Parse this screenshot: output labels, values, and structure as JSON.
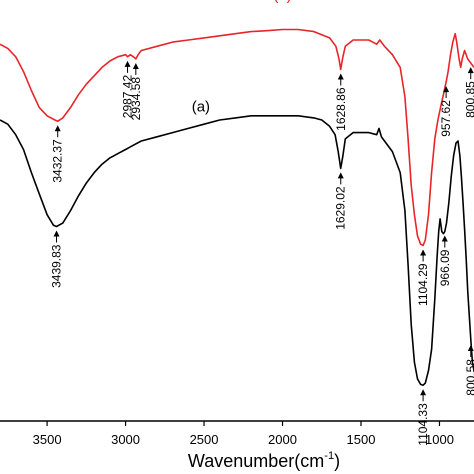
{
  "chart_data": {
    "type": "line",
    "xlabel": "Wavenumber(cm",
    "xlabel_sup": "-1",
    "xlabel_close": ")",
    "xlim": [
      3800,
      780
    ],
    "x_reversed": true,
    "x_ticks": [
      3500,
      3000,
      2500,
      2000,
      1500,
      1000
    ],
    "x_tick_labels": [
      "3500",
      "3000",
      "2500",
      "2000",
      "1500",
      "1000"
    ],
    "ylim": [
      0,
      100
    ],
    "y_ticks_labeled": false,
    "grid": false,
    "series": [
      {
        "name": "(b)",
        "color": "#e8252a",
        "label_x": 2000,
        "label_y": 100,
        "points": [
          [
            3800,
            89.5
          ],
          [
            3750,
            88.5
          ],
          [
            3700,
            86.5
          ],
          [
            3650,
            83
          ],
          [
            3600,
            78.5
          ],
          [
            3550,
            74.5
          ],
          [
            3500,
            72.5
          ],
          [
            3450,
            71.5
          ],
          [
            3432,
            71.2
          ],
          [
            3400,
            72
          ],
          [
            3350,
            74.5
          ],
          [
            3300,
            77.5
          ],
          [
            3250,
            80
          ],
          [
            3200,
            82
          ],
          [
            3150,
            84
          ],
          [
            3100,
            85.5
          ],
          [
            3050,
            86.5
          ],
          [
            3000,
            87
          ],
          [
            2987,
            86.5
          ],
          [
            2970,
            87
          ],
          [
            2950,
            86.5
          ],
          [
            2934,
            86
          ],
          [
            2920,
            87
          ],
          [
            2900,
            88
          ],
          [
            2800,
            89
          ],
          [
            2700,
            90
          ],
          [
            2600,
            90.5
          ],
          [
            2500,
            91
          ],
          [
            2400,
            91.5
          ],
          [
            2300,
            92
          ],
          [
            2200,
            92.5
          ],
          [
            2100,
            92.7
          ],
          [
            2000,
            93
          ],
          [
            1900,
            93
          ],
          [
            1800,
            92.5
          ],
          [
            1700,
            91
          ],
          [
            1660,
            89
          ],
          [
            1640,
            86
          ],
          [
            1629,
            83.5
          ],
          [
            1615,
            86.5
          ],
          [
            1600,
            89
          ],
          [
            1550,
            90.5
          ],
          [
            1500,
            90.5
          ],
          [
            1450,
            90.5
          ],
          [
            1400,
            89.5
          ],
          [
            1380,
            90.5
          ],
          [
            1350,
            89
          ],
          [
            1300,
            87
          ],
          [
            1250,
            84
          ],
          [
            1220,
            77
          ],
          [
            1200,
            67
          ],
          [
            1180,
            56
          ],
          [
            1160,
            49
          ],
          [
            1140,
            44
          ],
          [
            1120,
            42
          ],
          [
            1104,
            41.7
          ],
          [
            1090,
            43
          ],
          [
            1070,
            49
          ],
          [
            1050,
            59
          ],
          [
            1030,
            67
          ],
          [
            1010,
            71.5
          ],
          [
            990,
            75
          ],
          [
            975,
            77.5
          ],
          [
            958,
            80.5
          ],
          [
            945,
            83
          ],
          [
            930,
            87
          ],
          [
            915,
            90
          ],
          [
            900,
            92
          ],
          [
            890,
            90
          ],
          [
            875,
            86
          ],
          [
            865,
            84
          ],
          [
            855,
            86
          ],
          [
            840,
            88
          ],
          [
            820,
            86
          ],
          [
            800,
            85
          ],
          [
            780,
            84
          ]
        ]
      },
      {
        "name": "(a)",
        "color": "#000000",
        "label_x": 2520,
        "label_y": 73.5,
        "points": [
          [
            3800,
            71.5
          ],
          [
            3750,
            70.5
          ],
          [
            3700,
            68
          ],
          [
            3650,
            64.5
          ],
          [
            3600,
            59
          ],
          [
            3550,
            54
          ],
          [
            3500,
            49
          ],
          [
            3460,
            46.5
          ],
          [
            3440,
            46.2
          ],
          [
            3400,
            47
          ],
          [
            3350,
            50
          ],
          [
            3300,
            53.5
          ],
          [
            3250,
            56.5
          ],
          [
            3200,
            59
          ],
          [
            3150,
            61
          ],
          [
            3100,
            62.5
          ],
          [
            3050,
            63.5
          ],
          [
            3000,
            64.5
          ],
          [
            2950,
            65.5
          ],
          [
            2900,
            66.5
          ],
          [
            2800,
            67.5
          ],
          [
            2700,
            68.5
          ],
          [
            2600,
            69.5
          ],
          [
            2500,
            70.5
          ],
          [
            2400,
            71.5
          ],
          [
            2300,
            72
          ],
          [
            2200,
            72.5
          ],
          [
            2100,
            72.5
          ],
          [
            2000,
            72.5
          ],
          [
            1900,
            72.5
          ],
          [
            1800,
            72
          ],
          [
            1750,
            71.5
          ],
          [
            1700,
            70
          ],
          [
            1665,
            68
          ],
          [
            1645,
            64
          ],
          [
            1629,
            60
          ],
          [
            1615,
            63
          ],
          [
            1600,
            67
          ],
          [
            1550,
            68.5
          ],
          [
            1500,
            68.5
          ],
          [
            1450,
            68.5
          ],
          [
            1400,
            68
          ],
          [
            1385,
            69.5
          ],
          [
            1370,
            67.5
          ],
          [
            1350,
            66.5
          ],
          [
            1300,
            64
          ],
          [
            1250,
            59
          ],
          [
            1220,
            50
          ],
          [
            1200,
            37
          ],
          [
            1180,
            23
          ],
          [
            1160,
            14
          ],
          [
            1140,
            10
          ],
          [
            1120,
            8.7
          ],
          [
            1104,
            8.5
          ],
          [
            1090,
            9
          ],
          [
            1070,
            12
          ],
          [
            1050,
            17
          ],
          [
            1030,
            29
          ],
          [
            1015,
            39
          ],
          [
            1005,
            45
          ],
          [
            996,
            48
          ],
          [
            985,
            45
          ],
          [
            975,
            44.5
          ],
          [
            966,
            45
          ],
          [
            955,
            47
          ],
          [
            940,
            52
          ],
          [
            925,
            58
          ],
          [
            910,
            63
          ],
          [
            895,
            66
          ],
          [
            882,
            66.5
          ],
          [
            870,
            63
          ],
          [
            860,
            58
          ],
          [
            850,
            52
          ],
          [
            840,
            45.5
          ],
          [
            830,
            38.5
          ],
          [
            820,
            31
          ],
          [
            810,
            25
          ],
          [
            800,
            19
          ],
          [
            790,
            14
          ],
          [
            780,
            12
          ]
        ]
      }
    ],
    "annotations": [
      {
        "text": "3432.37",
        "series": "(b)",
        "x": 3432.37,
        "y": 71.2
      },
      {
        "text": "2987.42",
        "series": "(b)",
        "x": 2987.42,
        "y": 86.5
      },
      {
        "text": "2934.58",
        "series": "(b)",
        "x": 2934.58,
        "y": 86.0
      },
      {
        "text": "1628.86",
        "series": "(b)",
        "x": 1628.86,
        "y": 83.5
      },
      {
        "text": "1104.29",
        "series": "(b)",
        "x": 1104.29,
        "y": 41.7
      },
      {
        "text": "957.62",
        "series": "(b)",
        "x": 957.62,
        "y": 80.5
      },
      {
        "text": "800.85",
        "series": "(b)",
        "x": 800.85,
        "y": 85.0
      },
      {
        "text": "3439.83",
        "series": "(a)",
        "x": 3439.83,
        "y": 46.2
      },
      {
        "text": "1629.02",
        "series": "(a)",
        "x": 1629.02,
        "y": 60.0
      },
      {
        "text": "1104.33",
        "series": "(a)",
        "x": 1104.33,
        "y": 8.5
      },
      {
        "text": "966.09",
        "series": "(a)",
        "x": 966.09,
        "y": 45.0
      },
      {
        "text": "800.58",
        "series": "(a)",
        "x": 800.58,
        "y": 19.0
      }
    ]
  }
}
